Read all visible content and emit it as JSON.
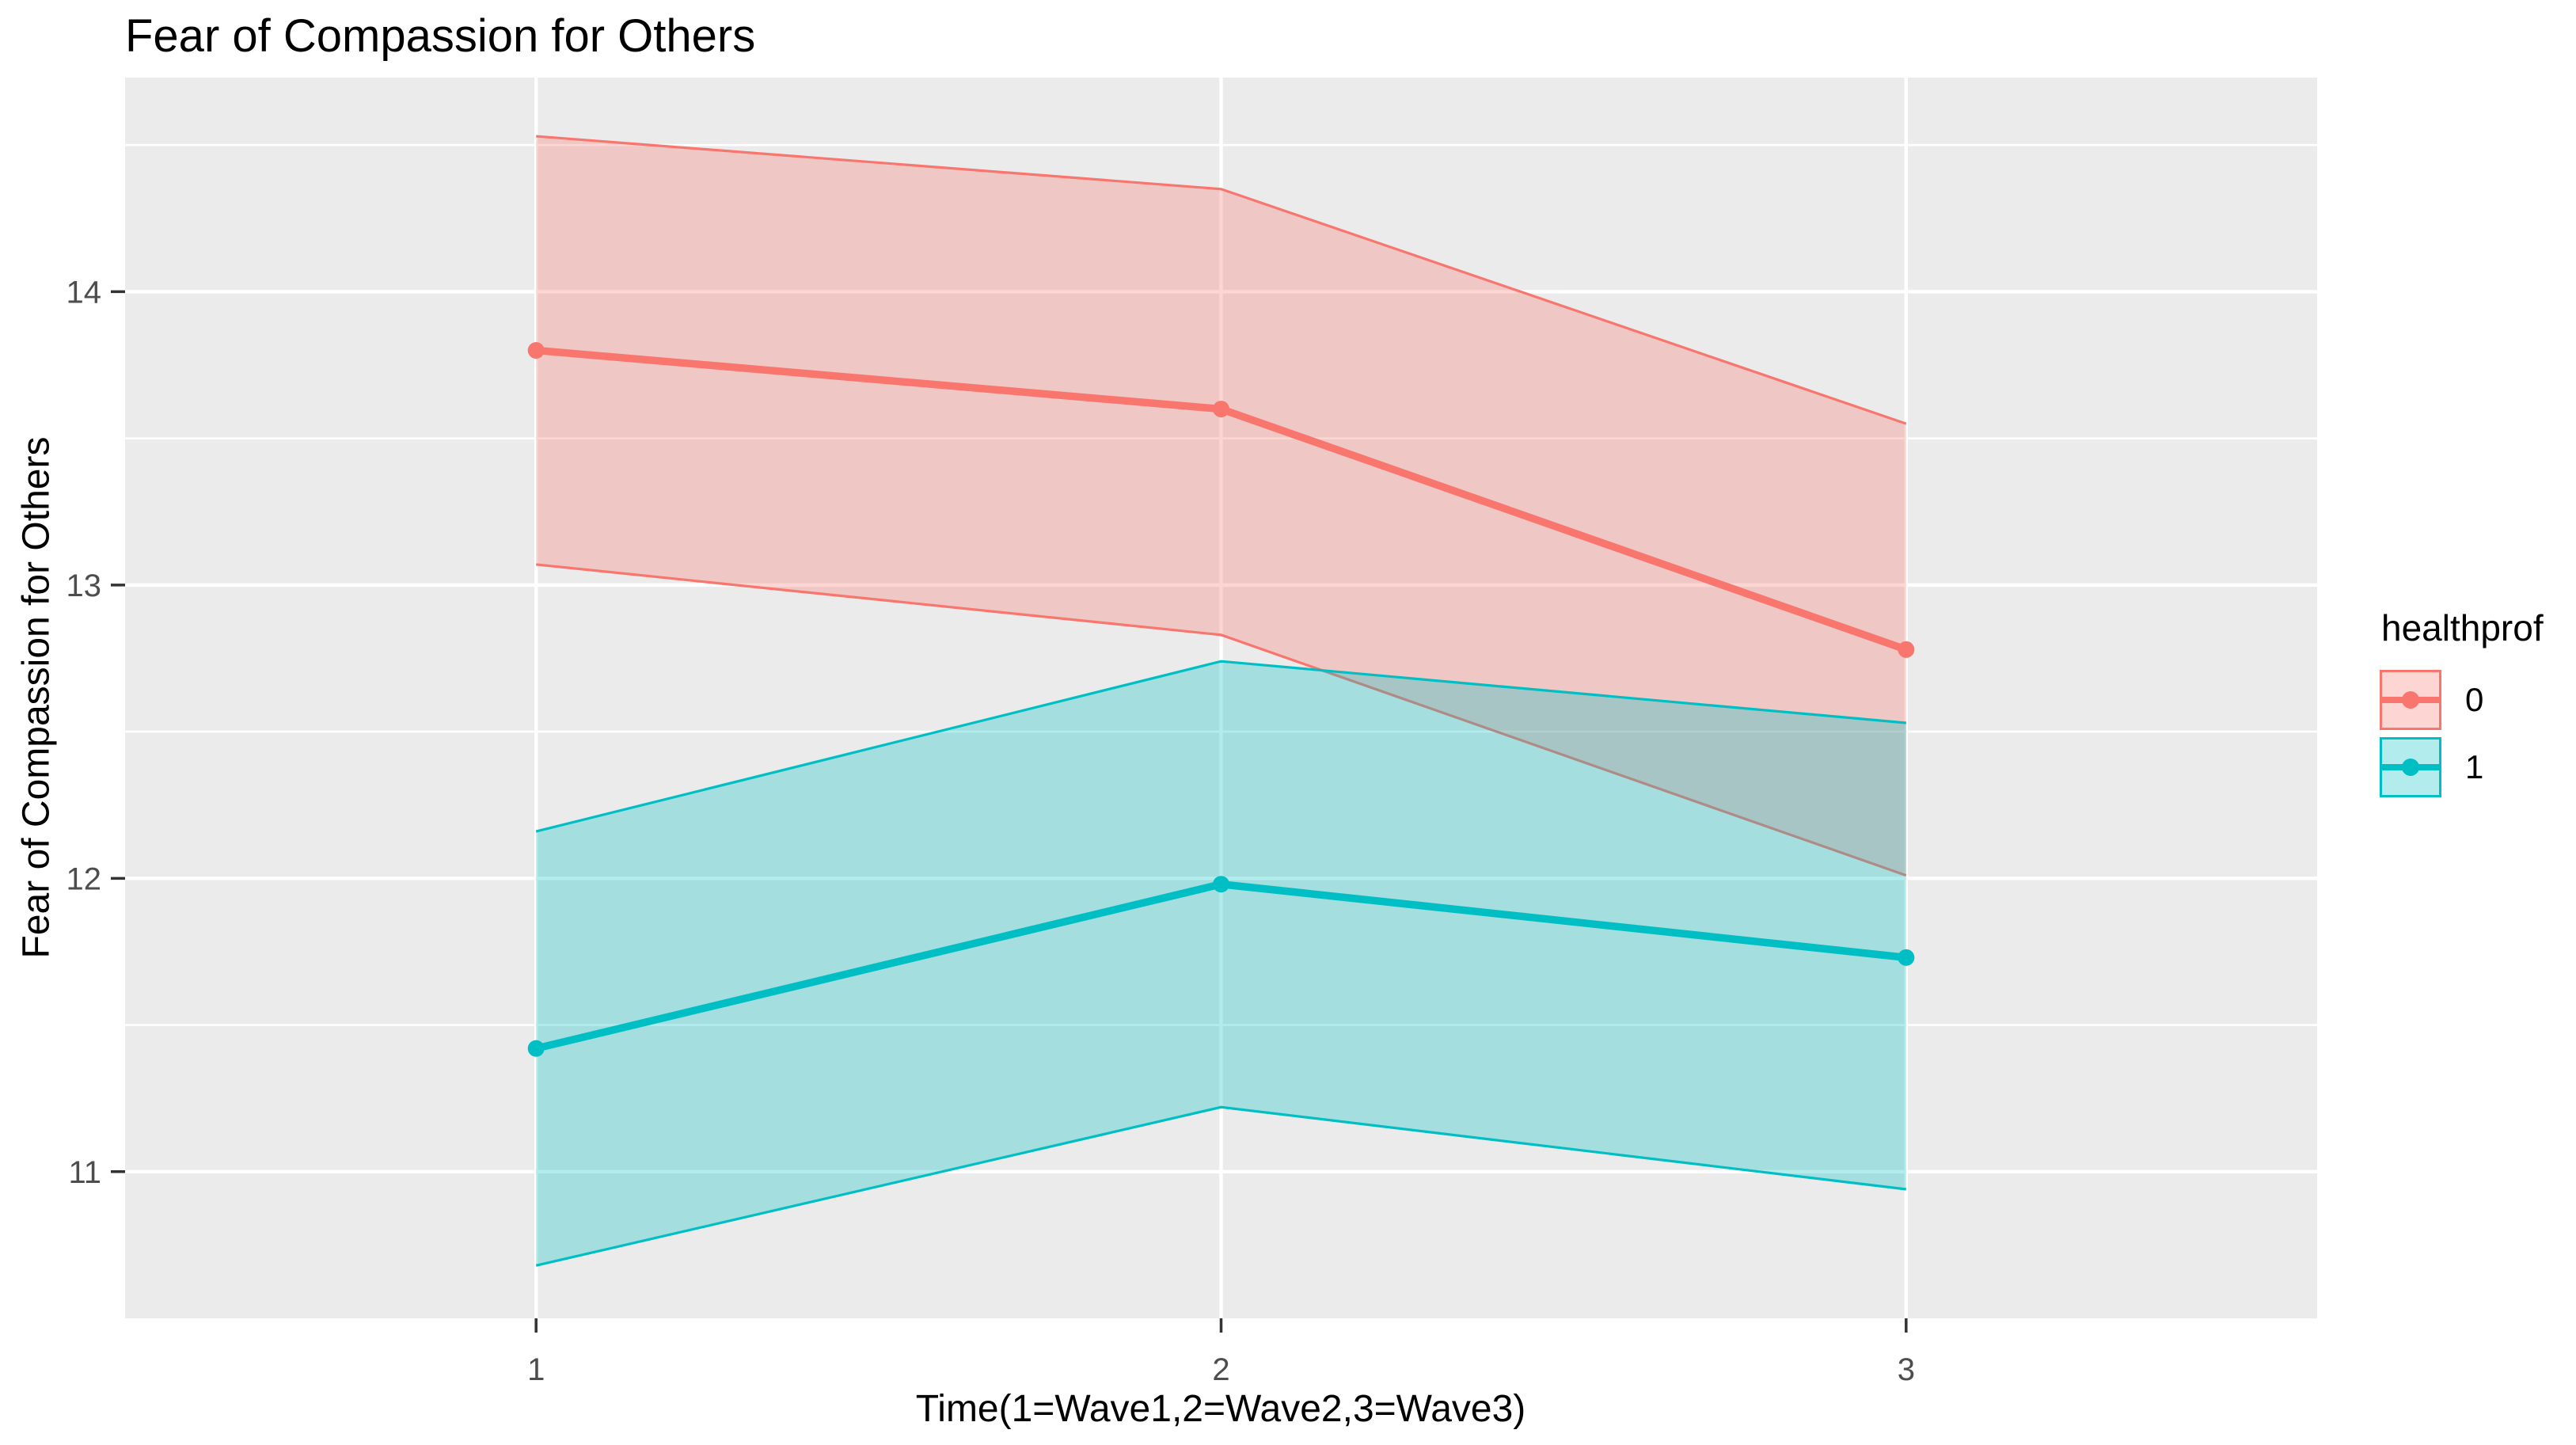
{
  "chart_data": {
    "type": "line",
    "title": "Fear of Compassion for Others",
    "xlabel": "Time(1=Wave1,2=Wave2,3=Wave3)",
    "ylabel": "Fear of Compassion for Others",
    "legend": {
      "title": "healthprof",
      "position": "right"
    },
    "x": [
      1,
      2,
      3
    ],
    "x_tick_labels": [
      "1",
      "2",
      "3"
    ],
    "y_ticks": [
      11,
      12,
      13,
      14
    ],
    "y_minor_ticks": [
      11.5,
      12.5,
      13.5,
      14.5
    ],
    "xlim": [
      0.4,
      3.6
    ],
    "ylim": [
      10.5,
      14.73
    ],
    "grid": true,
    "panel_bg": "#EBEBEB",
    "grid_color": "#FFFFFF",
    "tick_color": "#333333",
    "axis_text_color": "#4D4D4D",
    "ribbon_alpha": 0.3,
    "series": [
      {
        "name": "0",
        "color": "#F8766D",
        "fit": [
          13.8,
          13.6,
          12.78
        ],
        "lower": [
          13.07,
          12.83,
          12.01
        ],
        "upper": [
          14.53,
          14.35,
          13.55
        ]
      },
      {
        "name": "1",
        "color": "#00BFC4",
        "fit": [
          11.42,
          11.98,
          11.73
        ],
        "lower": [
          10.68,
          11.22,
          10.94
        ],
        "upper": [
          12.16,
          12.74,
          12.53
        ]
      }
    ]
  }
}
